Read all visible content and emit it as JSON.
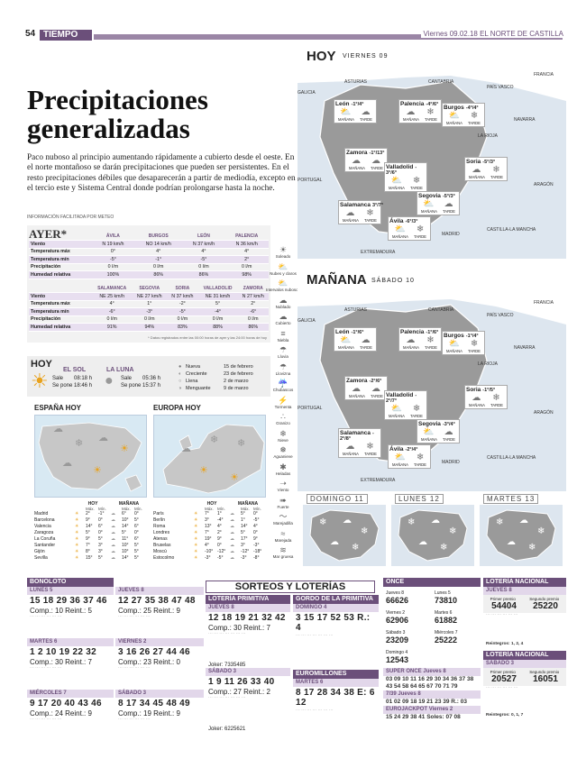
{
  "header": {
    "page": "54",
    "section": "TIEMPO",
    "date_paper": "Viernes 09.02.18 EL NORTE DE CASTILLA"
  },
  "headline": "Precipitaciones generalizadas",
  "lead": "Paco nuboso al principio aumentando rápidamente a cubierto desde el oeste. En el norte montañoso se darán precipitaciones que pueden ser persistentes. En el resto precipitaciones débiles que desaparecerán a partir de mediodía, excepto en el tercio este y Sistema Central donde podrían prolongarse hasta la noche.",
  "byline": "INFORMACIÓN FACILITADA POR METEO",
  "ayer": {
    "title": "AYER*",
    "t1_cols": [
      "ÁVILA",
      "BURGOS",
      "LEÓN",
      "PALENCIA"
    ],
    "t1_rows": [
      {
        "label": "Viento",
        "vals": [
          "N 19 km/h",
          "NO 14 km/h",
          "N 37 km/h",
          "N 36 km/h"
        ]
      },
      {
        "label": "Temperatura máx",
        "vals": [
          "0°",
          "4°",
          "4°",
          "4°"
        ]
      },
      {
        "label": "Temperatura mín",
        "vals": [
          "-5°",
          "-1°",
          "-5°",
          "2°"
        ]
      },
      {
        "label": "Precipitación",
        "vals": [
          "0 l/m",
          "0 l/m",
          "0 l/m",
          "0 l/m"
        ]
      },
      {
        "label": "Humedad relativa",
        "vals": [
          "100%",
          "86%",
          "86%",
          "98%"
        ]
      }
    ],
    "t2_cols": [
      "SALAMANCA",
      "SEGOVIA",
      "SORIA",
      "VALLADOLID",
      "ZAMORA"
    ],
    "t2_rows": [
      {
        "label": "Viento",
        "vals": [
          "NE 25 km/h",
          "NE 27 km/h",
          "N 37 km/h",
          "NE 31 km/h",
          "N 27 km/h"
        ]
      },
      {
        "label": "Temperatura máx",
        "vals": [
          "4°",
          "1°",
          "-2°",
          "5°",
          "2°"
        ]
      },
      {
        "label": "Temperatura mín",
        "vals": [
          "-6°",
          "-3°",
          "-5°",
          "-4°",
          "-6°"
        ]
      },
      {
        "label": "Precipitación",
        "vals": [
          "0 l/m",
          "0 l/m",
          "0 l/m",
          "0 l/m",
          "0 l/m"
        ]
      },
      {
        "label": "Humedad relativa",
        "vals": [
          "91%",
          "94%",
          "83%",
          "88%",
          "86%"
        ]
      }
    ],
    "note": "* Datos registrados entre las 00:00 horas de ayer y las 24:00 horas de hoy"
  },
  "hoy_astro": {
    "title": "HOY",
    "sol_title": "EL SOL",
    "luna_title": "LA LUNA",
    "sale_label": "Sale",
    "se_pone_label": "Se pone",
    "sol_sale": "08:18 h",
    "sol_pone": "18:46 h",
    "luna_sale": "05:36 h",
    "luna_pone": "15:37 h",
    "phases": [
      {
        "name": "Nueva",
        "date": "15 de febrero"
      },
      {
        "name": "Creciente",
        "date": "23 de febrero"
      },
      {
        "name": "Llena",
        "date": "2 de marzo"
      },
      {
        "name": "Menguante",
        "date": "9 de marzo"
      }
    ]
  },
  "espana": {
    "title": "ESPAÑA HOY",
    "hoy_label": "HOY",
    "manana_label": "MAÑANA",
    "max": "Máx.",
    "min": "Mín.",
    "rows": [
      {
        "city": "Madrid",
        "h": [
          "2°",
          "-1°"
        ],
        "m": [
          "6°",
          "0°"
        ]
      },
      {
        "city": "Barcelona",
        "h": [
          "9°",
          "0°"
        ],
        "m": [
          "10°",
          "5°"
        ]
      },
      {
        "city": "Valencia",
        "h": [
          "14°",
          "6°"
        ],
        "m": [
          "14°",
          "6°"
        ]
      },
      {
        "city": "Zaragoza",
        "h": [
          "5°",
          "0°"
        ],
        "m": [
          "5°",
          "0°"
        ]
      },
      {
        "city": "La Coruña",
        "h": [
          "9°",
          "5°"
        ],
        "m": [
          "11°",
          "6°"
        ]
      },
      {
        "city": "Santander",
        "h": [
          "7°",
          "3°"
        ],
        "m": [
          "10°",
          "5°"
        ]
      },
      {
        "city": "Gijón",
        "h": [
          "8°",
          "3°"
        ],
        "m": [
          "10°",
          "5°"
        ]
      },
      {
        "city": "Sevilla",
        "h": [
          "15°",
          "5°"
        ],
        "m": [
          "14°",
          "5°"
        ]
      }
    ]
  },
  "europa": {
    "title": "EUROPA HOY",
    "hoy_label": "HOY",
    "manana_label": "MAÑANA",
    "max": "Máx.",
    "min": "Mín.",
    "rows": [
      {
        "city": "París",
        "h": [
          "7°",
          "1°"
        ],
        "m": [
          "5°",
          "0°"
        ]
      },
      {
        "city": "Berlín",
        "h": [
          "3°",
          "-4°"
        ],
        "m": [
          "1°",
          "-5°"
        ]
      },
      {
        "city": "Roma",
        "h": [
          "13°",
          "4°"
        ],
        "m": [
          "14°",
          "4°"
        ]
      },
      {
        "city": "Londres",
        "h": [
          "7°",
          "2°"
        ],
        "m": [
          "5°",
          "0°"
        ]
      },
      {
        "city": "Atenas",
        "h": [
          "19°",
          "9°"
        ],
        "m": [
          "17°",
          "9°"
        ]
      },
      {
        "city": "Bruselas",
        "h": [
          "4°",
          "0°"
        ],
        "m": [
          "3°",
          "-3°"
        ]
      },
      {
        "city": "Moscú",
        "h": [
          "-10°",
          "-12°"
        ],
        "m": [
          "-12°",
          "-18°"
        ]
      },
      {
        "city": "Estocolmo",
        "h": [
          "-3°",
          "-5°"
        ],
        "m": [
          "-3°",
          "-8°"
        ]
      }
    ]
  },
  "legend": [
    "Soleado",
    "Nubes y claros",
    "Intervalos nubosos",
    "Nublado",
    "Cubierto",
    "Niebla",
    "Lluvia",
    "Llovizna",
    "Chubascos",
    "Tormenta",
    "Granizo",
    "Nieve",
    "Aguanieve",
    "Heladas",
    "Viento",
    "Fuerte",
    "Marejadilla",
    "Marejada",
    "Mar gruesa"
  ],
  "map_hoy": {
    "title": "HOY",
    "sub": "VIERNES 09",
    "regions": [
      "GALICIA",
      "ASTURIAS",
      "CANTABRIA",
      "PAÍS VASCO",
      "FRANCIA",
      "NAVARRA",
      "LA RIOJA",
      "ARAGÓN",
      "PORTUGAL",
      "MADRID",
      "CASTILLA-LA MANCHA",
      "EXTREMADURA"
    ],
    "cities": [
      {
        "name": "León",
        "t": "-1°/4°"
      },
      {
        "name": "Palencia",
        "t": "-4°/6°"
      },
      {
        "name": "Burgos",
        "t": "-4°/4°"
      },
      {
        "name": "Zamora",
        "t": "-1°/13°"
      },
      {
        "name": "Valladolid",
        "t": "-3°/6°"
      },
      {
        "name": "Soria",
        "t": "-5°/3°"
      },
      {
        "name": "Segovia",
        "t": "-5°/3°"
      },
      {
        "name": "Salamanca",
        "t": "3°/7°"
      },
      {
        "name": "Ávila",
        "t": "-6°/3°"
      }
    ],
    "manana_lbl": "MAÑANA",
    "tarde_lbl": "TARDE"
  },
  "map_manana": {
    "title": "MAÑANA",
    "sub": "SÁBADO 10",
    "cities": [
      {
        "name": "León",
        "t": "-1°/6°"
      },
      {
        "name": "Palencia",
        "t": "-1°/6°"
      },
      {
        "name": "Burgos",
        "t": "-1°/4°"
      },
      {
        "name": "Zamora",
        "t": "-2°/6°"
      },
      {
        "name": "Valladolid",
        "t": "-2°/7°"
      },
      {
        "name": "Soria",
        "t": "-1°/5°"
      },
      {
        "name": "Segovia",
        "t": "-3°/4°"
      },
      {
        "name": "Salamanca",
        "t": "-2°/8°"
      },
      {
        "name": "Ávila",
        "t": "-2°/4°"
      }
    ]
  },
  "forecast_small": [
    "DOMINGO 11",
    "LUNES 12",
    "MARTES 13"
  ],
  "lottery": {
    "title": "SORTEOS Y LOTERÍAS",
    "bonoloto": {
      "hdr": "BONOLOTO",
      "draws": [
        {
          "day": "LUNES 5",
          "nums": "15 18 29 36 37 46",
          "comp": "Comp.: 10",
          "reint": "Reint.: 5"
        },
        {
          "day": "MARTES 6",
          "nums": "1 2 10 19 22 32",
          "comp": "Comp.: 30",
          "reint": "Reint.: 7"
        },
        {
          "day": "MIÉRCOLES 7",
          "nums": "9 17 20 40 43 46",
          "comp": "Comp.: 24",
          "reint": "Reint.: 9"
        }
      ],
      "draws2": [
        {
          "day": "JUEVES 8",
          "nums": "12 27 35 38 47 48",
          "comp": "Comp.: 25",
          "reint": "Reint.: 9"
        },
        {
          "day": "VIERNES 2",
          "nums": "3 16 26 27 44 46",
          "comp": "Comp.: 23",
          "reint": "Reint.: 0"
        },
        {
          "day": "SÁBADO 3",
          "nums": "8 17 34 45 48 49",
          "comp": "Comp.: 19",
          "reint": "Reint.: 9"
        }
      ]
    },
    "primitiva": {
      "hdr": "LOTERÍA PRIMITIVA",
      "d1": {
        "day": "JUEVES 8",
        "nums": "12 18 19 21 32 42",
        "comp": "Comp.: 30",
        "reint": "Reint.: 7",
        "joker": "Joker: 7335485"
      },
      "d2": {
        "day": "SÁBADO 3",
        "nums": "1 9 11 26 33 40",
        "comp": "Comp.: 27",
        "reint": "Reint.: 2",
        "joker": "Joker: 6225621"
      }
    },
    "gordo": {
      "hdr": "GORDO DE LA PRIMITIVA",
      "day": "DOMINGO 4",
      "nums": "3 15 17 52 53",
      "extra": "R.: 4"
    },
    "euromillones": {
      "hdr": "EUROMILLONES",
      "day": "MARTES 6",
      "nums": "8 17 28 34 38",
      "stars": "E: 6 12"
    },
    "once": {
      "hdr": "ONCE",
      "items": [
        {
          "label": "Jueves 8",
          "num": "66626"
        },
        {
          "label": "Viernes 2",
          "num": "62906"
        },
        {
          "label": "Sábado 3",
          "num": "23209"
        },
        {
          "label": "Domingo 4",
          "num": "12543"
        },
        {
          "label": "Lunes 5",
          "num": "73810"
        },
        {
          "label": "Martes 6",
          "num": "61882"
        },
        {
          "label": "Miércoles 7",
          "num": "25222"
        }
      ],
      "super_hdr": "SUPER ONCE",
      "super_day": "Jueves 8",
      "super_nums": "03 09 10 11 16 29 30 34 36 37 38 43 54 58 64 65 67 70 71 79",
      "tripleday": "7/39",
      "triple_day": "Jueves 8",
      "triple_nums": "01 02 09 18 19 21 23 39",
      "triple_extra": "R.: 03",
      "eurojackpot": "EUROJACKPOT",
      "euro_day": "Viernes 2",
      "euro_nums": "15 24 29 38 41",
      "euro_soles": "Soles: 07 08"
    },
    "nacional": {
      "hdr": "LOTERÍA NACIONAL",
      "d1": {
        "day": "JUEVES 8",
        "p1_lbl": "Primer premio",
        "p1": "54404",
        "p2_lbl": "Segundo premio",
        "p2": "25220",
        "reint": "Reintegros: 1, 2, 4"
      },
      "d2": {
        "day": "SÁBADO 3",
        "p1_lbl": "Primer premio",
        "p1": "20527",
        "p2_lbl": "Segundo premio",
        "p2": "16051",
        "reint": "Reintegros: 0, 1, 7"
      }
    }
  }
}
